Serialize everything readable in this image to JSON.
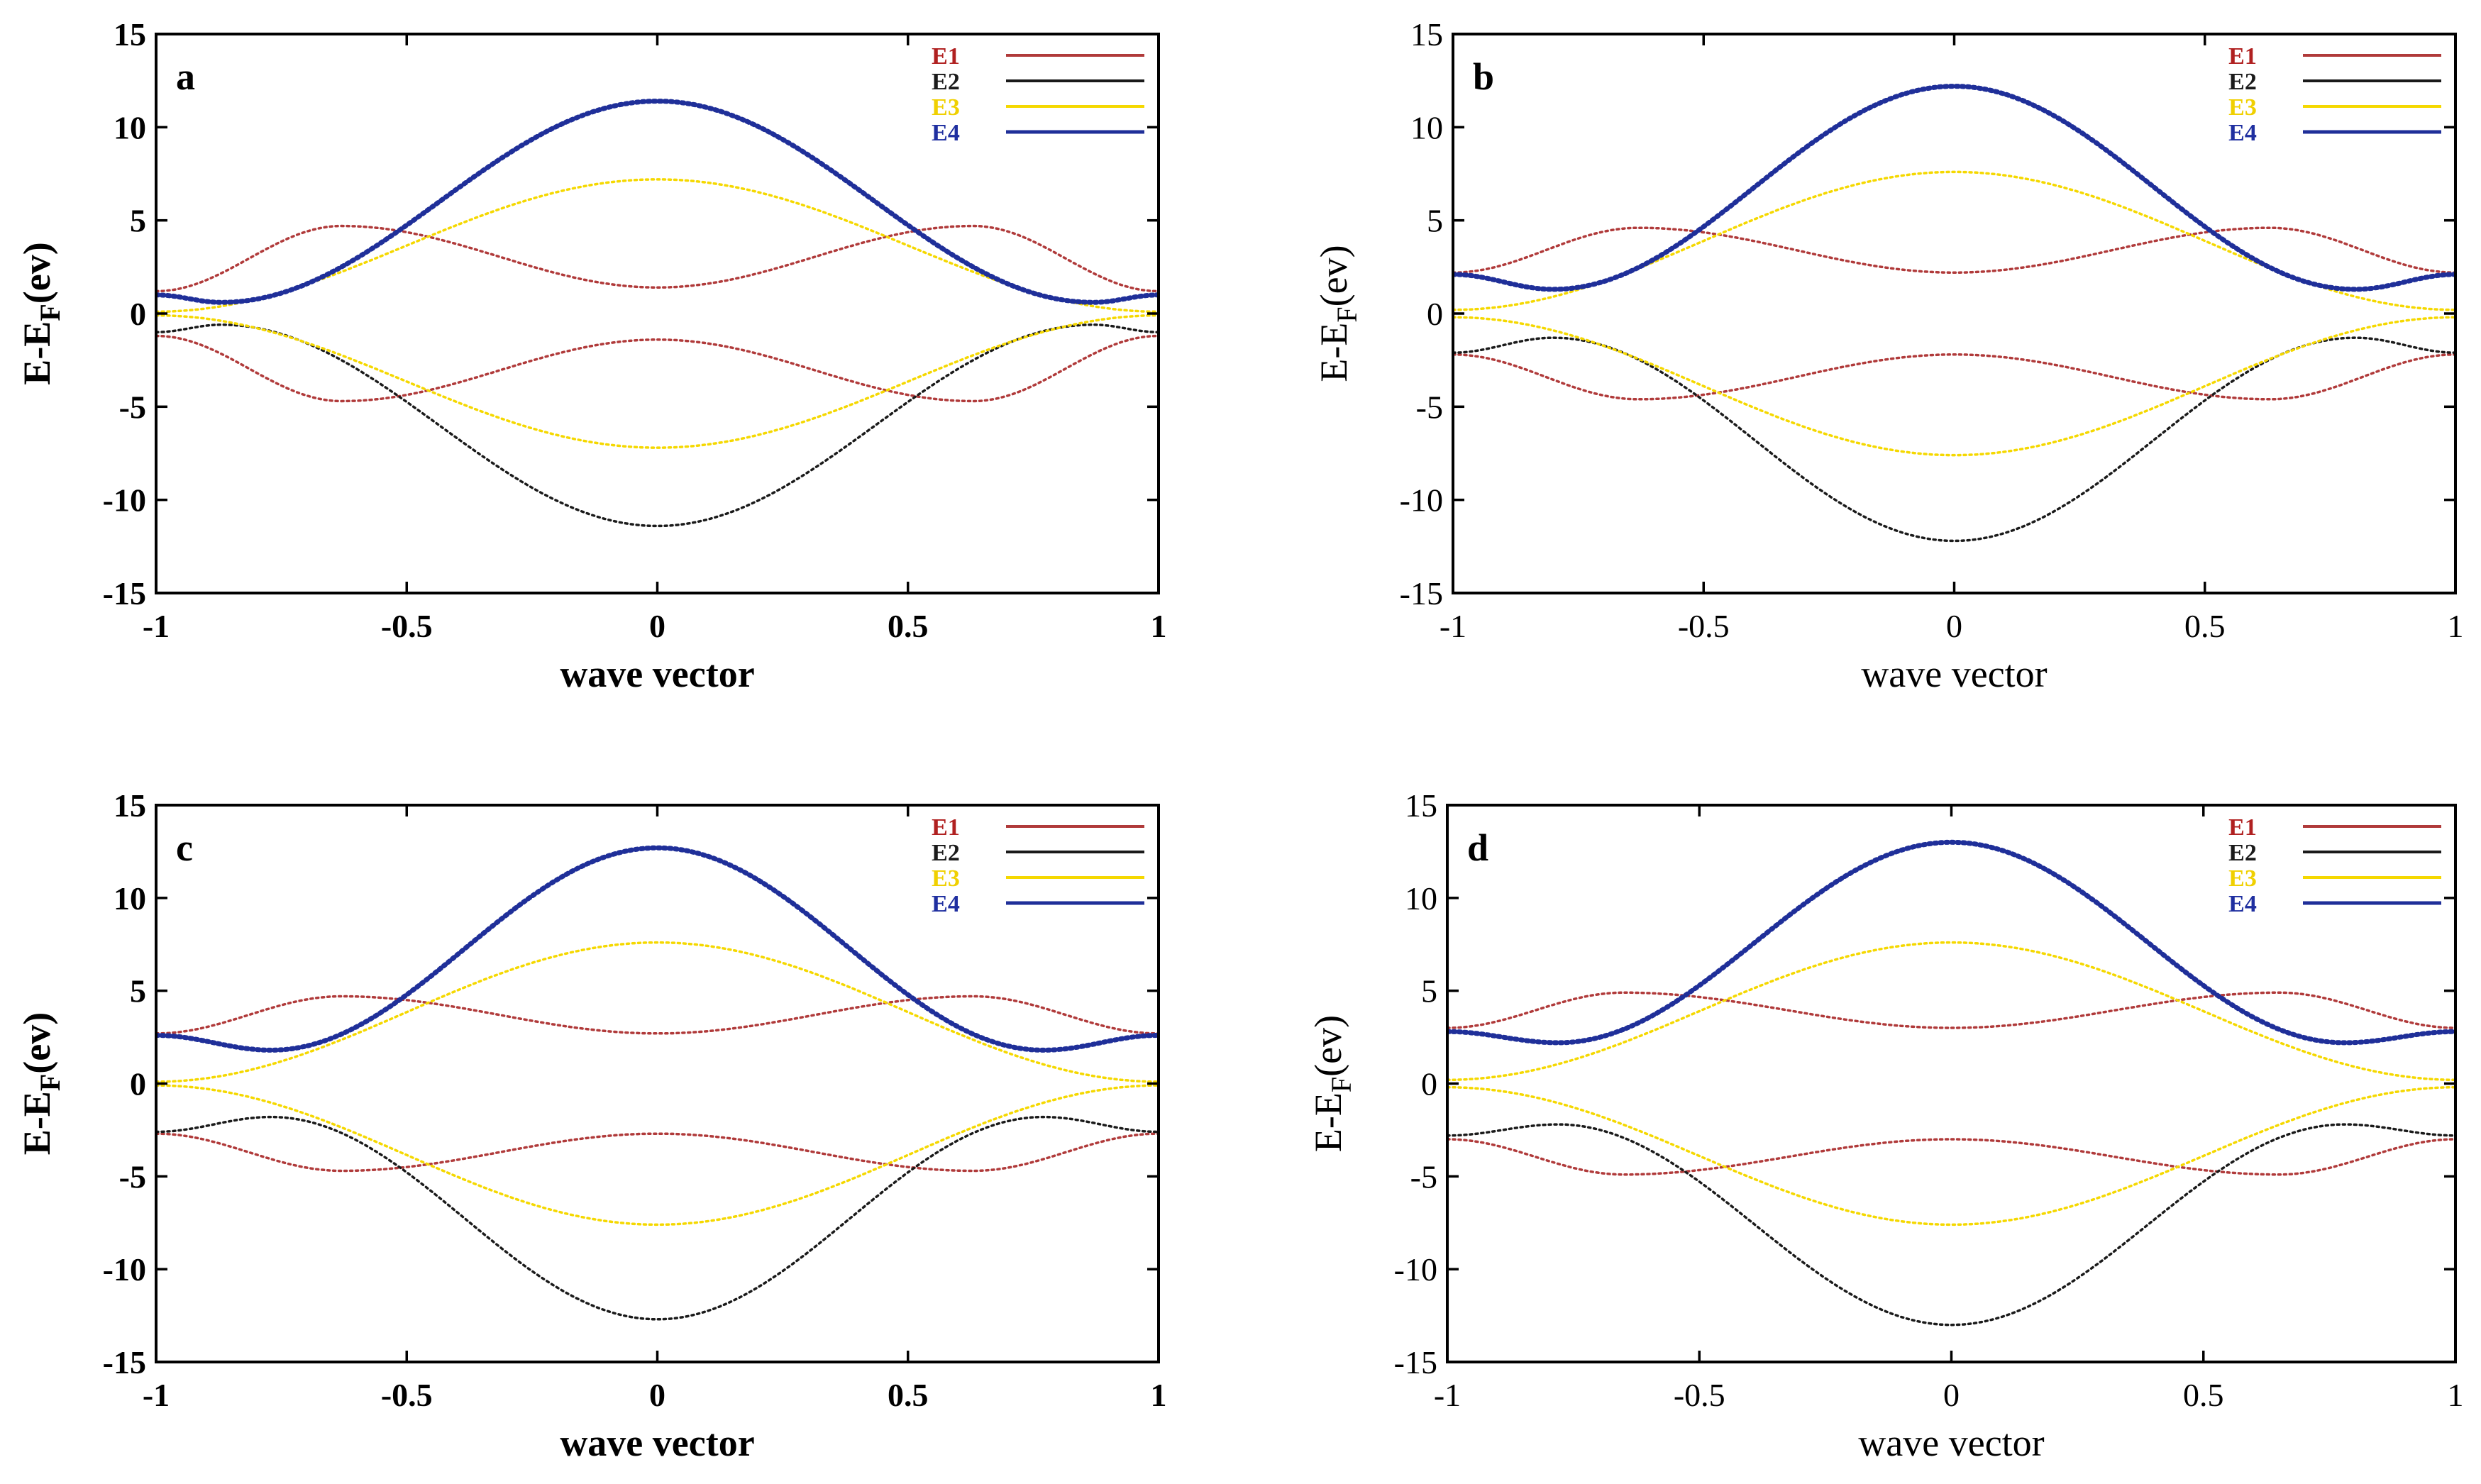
{
  "chart_data": [
    {
      "type": "line",
      "panel_label": "a",
      "xlabel": "wave vector",
      "ylabel": "E-E",
      "ylabel_sub": "F",
      "ylabel_suffix": "(ev)",
      "bold_axes": true,
      "xlim": [
        -1,
        1
      ],
      "ylim": [
        -15,
        15
      ],
      "xticks": [
        -1,
        -0.5,
        0,
        0.5,
        1
      ],
      "xtick_labels": [
        "-1",
        "-0.5",
        "0",
        "0.5",
        "1"
      ],
      "yticks": [
        -15,
        -10,
        -5,
        0,
        5,
        10,
        15
      ],
      "ytick_labels": [
        "-15",
        "-10",
        "-5",
        "0",
        "5",
        "10",
        "15"
      ],
      "legend": [
        "E1",
        "E2",
        "E3",
        "E4"
      ],
      "params": {
        "e1min": 1.4,
        "e1peak": 4.7,
        "e1edge": 1.2,
        "e1px": 0.63,
        "e2min": 0.6,
        "e2mx": 0.87,
        "e2edge": 1.0,
        "e3center": 7.2,
        "e3edge": 0.1,
        "e4center": 11.4
      }
    },
    {
      "type": "line",
      "panel_label": "b",
      "xlabel": "wave vector",
      "ylabel": "E-E",
      "ylabel_sub": "F",
      "ylabel_suffix": "(ev)",
      "bold_axes": false,
      "xlim": [
        -1,
        1
      ],
      "ylim": [
        -15,
        15
      ],
      "xticks": [
        -1,
        -0.5,
        0,
        0.5,
        1
      ],
      "xtick_labels": [
        "-1",
        "-0.5",
        "0",
        "0.5",
        "1"
      ],
      "yticks": [
        -15,
        -10,
        -5,
        0,
        5,
        10,
        15
      ],
      "ytick_labels": [
        "-15",
        "-10",
        "-5",
        "0",
        "5",
        "10",
        "15"
      ],
      "legend": [
        "E1",
        "E2",
        "E3",
        "E4"
      ],
      "params": {
        "e1min": 2.2,
        "e1peak": 4.6,
        "e1edge": 2.2,
        "e1px": 0.63,
        "e2min": 1.3,
        "e2mx": 0.8,
        "e2edge": 2.1,
        "e3center": 7.6,
        "e3edge": 0.2,
        "e4center": 12.2
      }
    },
    {
      "type": "line",
      "panel_label": "c",
      "xlabel": "wave vector",
      "ylabel": "E-E",
      "ylabel_sub": "F",
      "ylabel_suffix": "(ev)",
      "bold_axes": true,
      "xlim": [
        -1,
        1
      ],
      "ylim": [
        -15,
        15
      ],
      "xticks": [
        -1,
        -0.5,
        0,
        0.5,
        1
      ],
      "xtick_labels": [
        "-1",
        "-0.5",
        "0",
        "0.5",
        "1"
      ],
      "yticks": [
        -15,
        -10,
        -5,
        0,
        5,
        10,
        15
      ],
      "ytick_labels": [
        "-15",
        "-10",
        "-5",
        "0",
        "5",
        "10",
        "15"
      ],
      "legend": [
        "E1",
        "E2",
        "E3",
        "E4"
      ],
      "params": {
        "e1min": 2.7,
        "e1peak": 4.7,
        "e1edge": 2.7,
        "e1px": 0.63,
        "e2min": 1.8,
        "e2mx": 0.77,
        "e2edge": 2.6,
        "e3center": 7.6,
        "e3edge": 0.1,
        "e4center": 12.7
      }
    },
    {
      "type": "line",
      "panel_label": "d",
      "xlabel": "wave vector",
      "ylabel": "E-E",
      "ylabel_sub": "F",
      "ylabel_suffix": "(ev)",
      "bold_axes": false,
      "xlim": [
        -1,
        1
      ],
      "ylim": [
        -15,
        15
      ],
      "xticks": [
        -1,
        -0.5,
        0,
        0.5,
        1
      ],
      "xtick_labels": [
        "-1",
        "-0.5",
        "0",
        "0.5",
        "1"
      ],
      "yticks": [
        -15,
        -10,
        -5,
        0,
        5,
        10,
        15
      ],
      "ytick_labels": [
        "-15",
        "-10",
        "-5",
        "0",
        "5",
        "10",
        "15"
      ],
      "legend": [
        "E1",
        "E2",
        "E3",
        "E4"
      ],
      "params": {
        "e1min": 3.0,
        "e1peak": 4.9,
        "e1edge": 3.0,
        "e1px": 0.65,
        "e2min": 2.2,
        "e2mx": 0.78,
        "e2edge": 2.8,
        "e3center": 7.6,
        "e3edge": 0.2,
        "e4center": 13.0
      }
    }
  ],
  "series_colors": {
    "E1": "#b03a3a",
    "E2": "#1a1a1a",
    "E3": "#f5d800",
    "E4": "#1f2f99"
  },
  "legend_text_colors": {
    "E1": "#b02020",
    "E2": "#1a1a1a",
    "E3": "#f0d000",
    "E4": "#1f2fa0"
  }
}
